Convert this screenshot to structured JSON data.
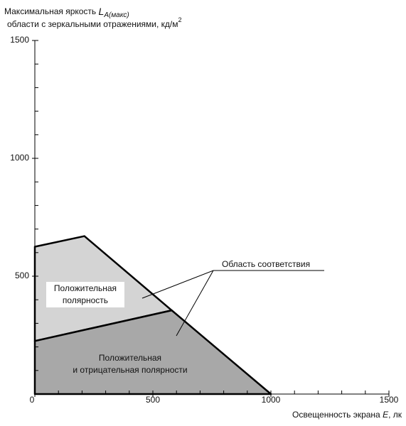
{
  "chart_data": {
    "type": "area",
    "y_label": {
      "line1": "Максимальная яркость ",
      "symbol": "L",
      "subscript": "A(макс)",
      "line2": "области с зеркальными отражениями,  кд/м",
      "superscript": "2"
    },
    "x_label": {
      "text": "Освещенность экрана ",
      "symbol": "E",
      "unit": ", лк"
    },
    "xlim": [
      0,
      1500
    ],
    "ylim": [
      0,
      1500
    ],
    "xticks": [
      0,
      500,
      1000,
      1500
    ],
    "yticks": [
      500,
      1000,
      1500
    ],
    "minor_xticks": [
      100,
      200,
      300,
      400,
      600,
      700,
      800,
      900,
      1100,
      1200,
      1300,
      1400
    ],
    "minor_yticks": [
      100,
      200,
      300,
      400,
      600,
      700,
      800,
      900,
      1100,
      1200,
      1300,
      1400
    ],
    "regions": [
      {
        "label": [
          "Положительная",
          "полярность"
        ],
        "color": "#d4d4d4",
        "x": [
          0,
          210,
          580,
          0
        ],
        "y": [
          625,
          670,
          355,
          225
        ]
      },
      {
        "label": [
          "Положительная",
          "и отрицательная полярности"
        ],
        "color": "#a8a8a8",
        "x": [
          0,
          0,
          580,
          1000
        ],
        "y": [
          0,
          225,
          355,
          0
        ]
      }
    ],
    "annotation": "Область соответствия"
  }
}
